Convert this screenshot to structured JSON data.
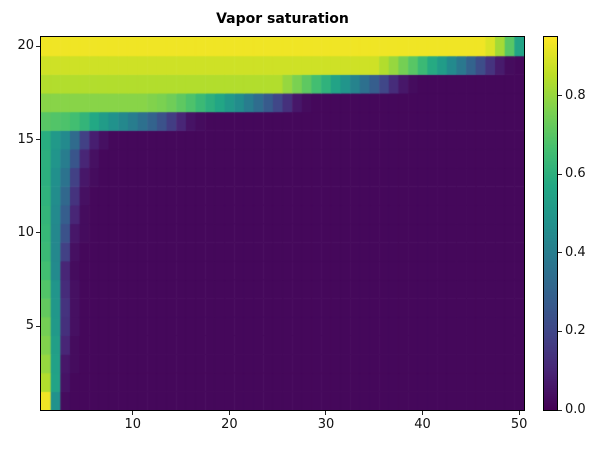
{
  "title": "Vapor saturation",
  "axes": {
    "x_tick_labels": [
      "10",
      "20",
      "30",
      "40",
      "50"
    ],
    "x_tick_values": [
      10,
      20,
      30,
      40,
      50
    ],
    "y_tick_labels": [
      "5",
      "10",
      "15",
      "20"
    ],
    "y_tick_values": [
      5,
      10,
      15,
      20
    ]
  },
  "colorbar": {
    "tick_labels": [
      "0.0",
      "0.2",
      "0.4",
      "0.6",
      "0.8"
    ],
    "tick_values": [
      0.0,
      0.2,
      0.4,
      0.6,
      0.8
    ],
    "colormap": "viridis",
    "position": "right"
  },
  "chart_data": {
    "type": "heatmap",
    "title": "Vapor saturation",
    "xlabel": "",
    "ylabel": "",
    "x_range": [
      1,
      50
    ],
    "y_range": [
      1,
      20
    ],
    "n_cols": 50,
    "n_rows": 20,
    "vmin": 0.0,
    "vmax": 0.95,
    "colormap": "viridis",
    "grid_on": false,
    "legend_position": "colorbar-right",
    "grid_rows_bottom_to_top": [
      [
        0.93,
        0.48,
        0.03,
        0.02,
        0.02,
        0.02,
        0.02,
        0.02,
        0.02,
        0.02,
        0.02,
        0.02,
        0.02,
        0.02,
        0.02,
        0.02,
        0.02,
        0.02,
        0.02,
        0.02,
        0.02,
        0.02,
        0.02,
        0.02,
        0.02,
        0.02,
        0.02,
        0.02,
        0.02,
        0.02,
        0.02,
        0.02,
        0.02,
        0.02,
        0.02,
        0.02,
        0.02,
        0.02,
        0.02,
        0.02,
        0.02,
        0.02,
        0.02,
        0.02,
        0.02,
        0.02,
        0.02,
        0.02,
        0.02,
        0.02
      ],
      [
        0.84,
        0.55,
        0.05,
        0.02,
        0.02,
        0.02,
        0.02,
        0.02,
        0.02,
        0.02,
        0.02,
        0.02,
        0.02,
        0.02,
        0.02,
        0.02,
        0.02,
        0.02,
        0.02,
        0.02,
        0.02,
        0.02,
        0.02,
        0.02,
        0.02,
        0.02,
        0.02,
        0.02,
        0.02,
        0.02,
        0.02,
        0.02,
        0.02,
        0.02,
        0.02,
        0.02,
        0.02,
        0.02,
        0.02,
        0.02,
        0.02,
        0.02,
        0.02,
        0.02,
        0.02,
        0.02,
        0.02,
        0.02,
        0.02,
        0.02
      ],
      [
        0.8,
        0.54,
        0.06,
        0.03,
        0.02,
        0.02,
        0.02,
        0.02,
        0.02,
        0.02,
        0.02,
        0.02,
        0.02,
        0.02,
        0.02,
        0.02,
        0.02,
        0.02,
        0.02,
        0.02,
        0.02,
        0.02,
        0.02,
        0.02,
        0.02,
        0.02,
        0.02,
        0.02,
        0.02,
        0.02,
        0.02,
        0.02,
        0.02,
        0.02,
        0.02,
        0.02,
        0.02,
        0.02,
        0.02,
        0.02,
        0.02,
        0.02,
        0.02,
        0.02,
        0.02,
        0.02,
        0.02,
        0.02,
        0.02,
        0.02
      ],
      [
        0.77,
        0.53,
        0.1,
        0.03,
        0.02,
        0.02,
        0.02,
        0.02,
        0.02,
        0.02,
        0.02,
        0.02,
        0.02,
        0.02,
        0.02,
        0.02,
        0.02,
        0.02,
        0.02,
        0.02,
        0.02,
        0.02,
        0.02,
        0.02,
        0.02,
        0.02,
        0.02,
        0.02,
        0.02,
        0.02,
        0.02,
        0.02,
        0.02,
        0.02,
        0.02,
        0.02,
        0.02,
        0.02,
        0.02,
        0.02,
        0.02,
        0.02,
        0.02,
        0.02,
        0.02,
        0.02,
        0.02,
        0.02,
        0.02,
        0.02
      ],
      [
        0.75,
        0.51,
        0.13,
        0.04,
        0.02,
        0.02,
        0.02,
        0.02,
        0.02,
        0.02,
        0.02,
        0.02,
        0.02,
        0.02,
        0.02,
        0.02,
        0.02,
        0.02,
        0.02,
        0.02,
        0.02,
        0.02,
        0.02,
        0.02,
        0.02,
        0.02,
        0.02,
        0.02,
        0.02,
        0.02,
        0.02,
        0.02,
        0.02,
        0.02,
        0.02,
        0.02,
        0.02,
        0.02,
        0.02,
        0.02,
        0.02,
        0.02,
        0.02,
        0.02,
        0.02,
        0.02,
        0.02,
        0.02,
        0.02,
        0.02
      ],
      [
        0.72,
        0.5,
        0.14,
        0.04,
        0.02,
        0.02,
        0.02,
        0.02,
        0.02,
        0.02,
        0.02,
        0.02,
        0.02,
        0.02,
        0.02,
        0.02,
        0.02,
        0.02,
        0.02,
        0.02,
        0.02,
        0.02,
        0.02,
        0.02,
        0.02,
        0.02,
        0.02,
        0.02,
        0.02,
        0.02,
        0.02,
        0.02,
        0.02,
        0.02,
        0.02,
        0.02,
        0.02,
        0.02,
        0.02,
        0.02,
        0.02,
        0.02,
        0.02,
        0.02,
        0.02,
        0.02,
        0.02,
        0.02,
        0.02,
        0.02
      ],
      [
        0.69,
        0.49,
        0.12,
        0.04,
        0.02,
        0.02,
        0.02,
        0.02,
        0.02,
        0.02,
        0.02,
        0.02,
        0.02,
        0.02,
        0.02,
        0.02,
        0.02,
        0.02,
        0.02,
        0.02,
        0.02,
        0.02,
        0.02,
        0.02,
        0.02,
        0.02,
        0.02,
        0.02,
        0.02,
        0.02,
        0.02,
        0.02,
        0.02,
        0.02,
        0.02,
        0.02,
        0.02,
        0.02,
        0.02,
        0.02,
        0.02,
        0.02,
        0.02,
        0.02,
        0.02,
        0.02,
        0.02,
        0.02,
        0.02,
        0.02
      ],
      [
        0.66,
        0.45,
        0.1,
        0.03,
        0.02,
        0.02,
        0.02,
        0.02,
        0.02,
        0.02,
        0.02,
        0.02,
        0.02,
        0.02,
        0.02,
        0.02,
        0.02,
        0.02,
        0.02,
        0.02,
        0.02,
        0.02,
        0.02,
        0.02,
        0.02,
        0.02,
        0.02,
        0.02,
        0.02,
        0.02,
        0.02,
        0.02,
        0.02,
        0.02,
        0.02,
        0.02,
        0.02,
        0.02,
        0.02,
        0.02,
        0.02,
        0.02,
        0.02,
        0.02,
        0.02,
        0.02,
        0.02,
        0.02,
        0.02,
        0.02
      ],
      [
        0.64,
        0.44,
        0.18,
        0.04,
        0.02,
        0.02,
        0.02,
        0.02,
        0.02,
        0.02,
        0.02,
        0.02,
        0.02,
        0.02,
        0.02,
        0.02,
        0.02,
        0.02,
        0.02,
        0.02,
        0.02,
        0.02,
        0.02,
        0.02,
        0.02,
        0.02,
        0.02,
        0.02,
        0.02,
        0.02,
        0.02,
        0.02,
        0.02,
        0.02,
        0.02,
        0.02,
        0.02,
        0.02,
        0.02,
        0.02,
        0.02,
        0.02,
        0.02,
        0.02,
        0.02,
        0.02,
        0.02,
        0.02,
        0.02,
        0.02
      ],
      [
        0.63,
        0.44,
        0.24,
        0.06,
        0.03,
        0.02,
        0.02,
        0.02,
        0.02,
        0.02,
        0.02,
        0.02,
        0.02,
        0.02,
        0.02,
        0.02,
        0.02,
        0.02,
        0.02,
        0.02,
        0.02,
        0.02,
        0.02,
        0.02,
        0.02,
        0.02,
        0.02,
        0.02,
        0.02,
        0.02,
        0.02,
        0.02,
        0.02,
        0.02,
        0.02,
        0.02,
        0.02,
        0.02,
        0.02,
        0.02,
        0.02,
        0.02,
        0.02,
        0.02,
        0.02,
        0.02,
        0.02,
        0.02,
        0.02,
        0.02
      ],
      [
        0.62,
        0.45,
        0.28,
        0.1,
        0.03,
        0.02,
        0.02,
        0.02,
        0.02,
        0.02,
        0.02,
        0.02,
        0.02,
        0.02,
        0.02,
        0.02,
        0.02,
        0.02,
        0.02,
        0.02,
        0.02,
        0.02,
        0.02,
        0.02,
        0.02,
        0.02,
        0.02,
        0.02,
        0.02,
        0.02,
        0.02,
        0.02,
        0.02,
        0.02,
        0.02,
        0.02,
        0.02,
        0.02,
        0.02,
        0.02,
        0.02,
        0.02,
        0.02,
        0.02,
        0.02,
        0.02,
        0.02,
        0.02,
        0.02,
        0.02
      ],
      [
        0.61,
        0.46,
        0.32,
        0.14,
        0.04,
        0.02,
        0.02,
        0.02,
        0.02,
        0.02,
        0.02,
        0.02,
        0.02,
        0.02,
        0.02,
        0.02,
        0.02,
        0.02,
        0.02,
        0.02,
        0.02,
        0.02,
        0.02,
        0.02,
        0.02,
        0.02,
        0.02,
        0.02,
        0.02,
        0.02,
        0.02,
        0.02,
        0.02,
        0.02,
        0.02,
        0.02,
        0.02,
        0.02,
        0.02,
        0.02,
        0.02,
        0.02,
        0.02,
        0.02,
        0.02,
        0.02,
        0.02,
        0.02,
        0.02,
        0.02
      ],
      [
        0.6,
        0.47,
        0.36,
        0.18,
        0.06,
        0.03,
        0.02,
        0.02,
        0.02,
        0.02,
        0.02,
        0.02,
        0.02,
        0.02,
        0.02,
        0.02,
        0.02,
        0.02,
        0.02,
        0.02,
        0.02,
        0.02,
        0.02,
        0.02,
        0.02,
        0.02,
        0.02,
        0.02,
        0.02,
        0.02,
        0.02,
        0.02,
        0.02,
        0.02,
        0.02,
        0.02,
        0.02,
        0.02,
        0.02,
        0.02,
        0.02,
        0.02,
        0.02,
        0.02,
        0.02,
        0.02,
        0.02,
        0.02,
        0.02,
        0.02
      ],
      [
        0.6,
        0.49,
        0.4,
        0.25,
        0.1,
        0.04,
        0.02,
        0.02,
        0.02,
        0.02,
        0.02,
        0.02,
        0.02,
        0.02,
        0.02,
        0.02,
        0.02,
        0.02,
        0.02,
        0.02,
        0.02,
        0.02,
        0.02,
        0.02,
        0.02,
        0.02,
        0.02,
        0.02,
        0.02,
        0.02,
        0.02,
        0.02,
        0.02,
        0.02,
        0.02,
        0.02,
        0.02,
        0.02,
        0.02,
        0.02,
        0.02,
        0.02,
        0.02,
        0.02,
        0.02,
        0.02,
        0.02,
        0.02,
        0.02,
        0.02
      ],
      [
        0.59,
        0.51,
        0.45,
        0.33,
        0.18,
        0.08,
        0.04,
        0.02,
        0.02,
        0.02,
        0.02,
        0.02,
        0.02,
        0.02,
        0.02,
        0.02,
        0.02,
        0.02,
        0.02,
        0.02,
        0.02,
        0.02,
        0.02,
        0.02,
        0.02,
        0.02,
        0.02,
        0.02,
        0.02,
        0.02,
        0.02,
        0.02,
        0.02,
        0.02,
        0.02,
        0.02,
        0.02,
        0.02,
        0.02,
        0.02,
        0.02,
        0.02,
        0.02,
        0.02,
        0.02,
        0.02,
        0.02,
        0.02,
        0.02,
        0.02
      ],
      [
        0.7,
        0.69,
        0.68,
        0.66,
        0.62,
        0.57,
        0.52,
        0.48,
        0.44,
        0.4,
        0.35,
        0.3,
        0.24,
        0.17,
        0.1,
        0.05,
        0.03,
        0.02,
        0.02,
        0.02,
        0.02,
        0.02,
        0.02,
        0.02,
        0.02,
        0.02,
        0.02,
        0.02,
        0.02,
        0.02,
        0.02,
        0.02,
        0.02,
        0.02,
        0.02,
        0.02,
        0.02,
        0.02,
        0.02,
        0.02,
        0.02,
        0.02,
        0.02,
        0.02,
        0.02,
        0.02,
        0.02,
        0.02,
        0.02,
        0.02
      ],
      [
        0.78,
        0.78,
        0.78,
        0.78,
        0.78,
        0.78,
        0.78,
        0.78,
        0.78,
        0.78,
        0.78,
        0.77,
        0.76,
        0.74,
        0.71,
        0.68,
        0.64,
        0.6,
        0.56,
        0.51,
        0.46,
        0.4,
        0.34,
        0.27,
        0.2,
        0.13,
        0.06,
        0.03,
        0.02,
        0.02,
        0.02,
        0.02,
        0.02,
        0.02,
        0.02,
        0.02,
        0.02,
        0.02,
        0.02,
        0.02,
        0.02,
        0.02,
        0.02,
        0.02,
        0.02,
        0.02,
        0.02,
        0.02,
        0.02,
        0.02
      ],
      [
        0.84,
        0.84,
        0.84,
        0.84,
        0.84,
        0.84,
        0.84,
        0.84,
        0.84,
        0.84,
        0.84,
        0.84,
        0.84,
        0.84,
        0.84,
        0.84,
        0.84,
        0.84,
        0.84,
        0.84,
        0.84,
        0.84,
        0.84,
        0.84,
        0.84,
        0.8,
        0.76,
        0.71,
        0.66,
        0.61,
        0.55,
        0.49,
        0.42,
        0.35,
        0.28,
        0.2,
        0.12,
        0.06,
        0.03,
        0.02,
        0.02,
        0.02,
        0.02,
        0.02,
        0.02,
        0.02,
        0.02,
        0.02,
        0.02,
        0.02
      ],
      [
        0.88,
        0.88,
        0.88,
        0.88,
        0.88,
        0.88,
        0.88,
        0.88,
        0.88,
        0.88,
        0.88,
        0.88,
        0.88,
        0.88,
        0.88,
        0.88,
        0.88,
        0.88,
        0.88,
        0.88,
        0.88,
        0.88,
        0.88,
        0.88,
        0.88,
        0.88,
        0.88,
        0.88,
        0.88,
        0.88,
        0.88,
        0.88,
        0.88,
        0.88,
        0.88,
        0.84,
        0.8,
        0.75,
        0.7,
        0.64,
        0.58,
        0.52,
        0.45,
        0.38,
        0.3,
        0.22,
        0.14,
        0.07,
        0.03,
        0.02
      ],
      [
        0.93,
        0.93,
        0.93,
        0.93,
        0.93,
        0.93,
        0.93,
        0.93,
        0.93,
        0.93,
        0.93,
        0.93,
        0.93,
        0.93,
        0.93,
        0.93,
        0.93,
        0.93,
        0.93,
        0.93,
        0.93,
        0.93,
        0.93,
        0.93,
        0.93,
        0.93,
        0.93,
        0.93,
        0.93,
        0.93,
        0.93,
        0.93,
        0.93,
        0.93,
        0.93,
        0.93,
        0.93,
        0.93,
        0.93,
        0.93,
        0.93,
        0.93,
        0.93,
        0.93,
        0.93,
        0.93,
        0.9,
        0.82,
        0.7,
        0.55
      ]
    ]
  }
}
